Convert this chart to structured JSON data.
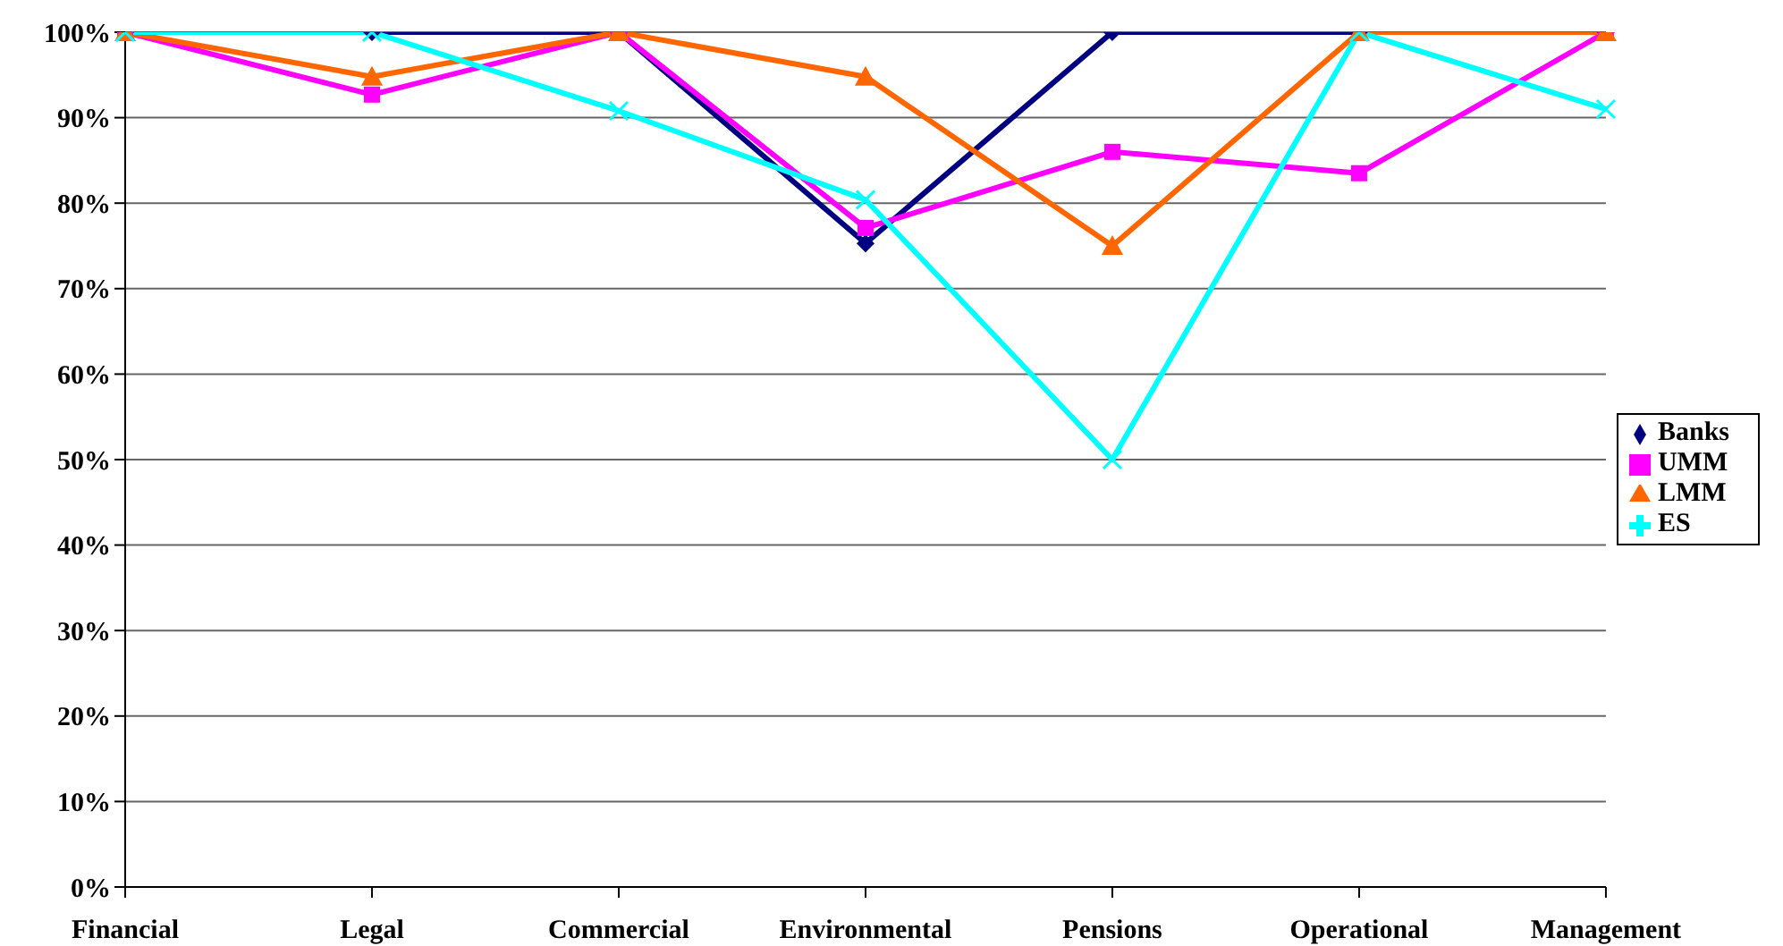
{
  "chart_data": {
    "type": "line",
    "categories": [
      "Financial",
      "Legal",
      "Commercial",
      "Environmental",
      "Pensions",
      "Operational",
      "Management"
    ],
    "series": [
      {
        "name": "Banks",
        "color": "#000080",
        "marker": "diamond",
        "values": [
          100,
          100,
          100,
          75.3,
          100,
          100,
          100
        ]
      },
      {
        "name": "UMM",
        "color": "#ff00ff",
        "marker": "square",
        "values": [
          100,
          92.7,
          100,
          77.1,
          86,
          83.5,
          100
        ]
      },
      {
        "name": "LMM",
        "color": "#ff6600",
        "marker": "triangle",
        "values": [
          100,
          94.8,
          100,
          94.8,
          75,
          100,
          100
        ]
      },
      {
        "name": "ES",
        "color": "#00ffff",
        "marker": "cross",
        "values": [
          100,
          100,
          90.8,
          80.4,
          50,
          100,
          91
        ]
      }
    ],
    "ylim": [
      0,
      100
    ],
    "yticks": [
      {
        "value": 0,
        "label": "0%"
      },
      {
        "value": 10,
        "label": "10%"
      },
      {
        "value": 20,
        "label": "20%"
      },
      {
        "value": 30,
        "label": "30%"
      },
      {
        "value": 40,
        "label": "40%"
      },
      {
        "value": 50,
        "label": "50%"
      },
      {
        "value": 60,
        "label": "60%"
      },
      {
        "value": 70,
        "label": "70%"
      },
      {
        "value": 80,
        "label": "80%"
      },
      {
        "value": 90,
        "label": "90%"
      },
      {
        "value": 100,
        "label": "100%"
      }
    ],
    "grid": "y",
    "legend": "right",
    "line_style": "solid"
  }
}
